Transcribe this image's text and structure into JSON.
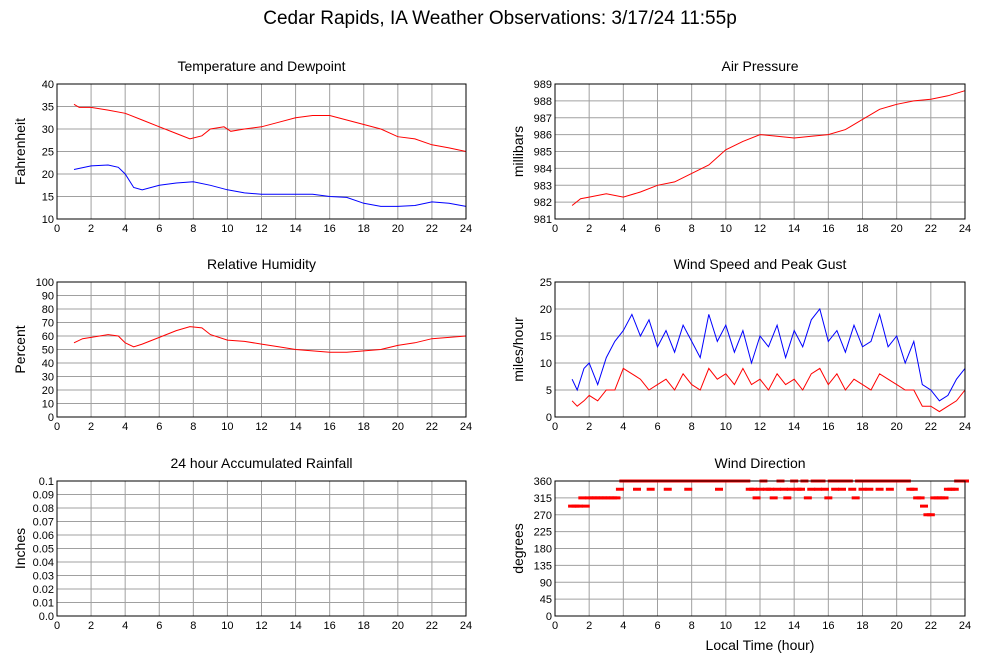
{
  "page_title": "Cedar Rapids, IA Weather Observations: 3/17/24 11:55p",
  "colors": {
    "red": "#ff0000",
    "blue": "#0000ff",
    "grid": "#a0a0a0"
  },
  "chart_data": [
    {
      "id": "temp",
      "type": "line",
      "title": "Temperature and Dewpoint",
      "ylabel": "Fahrenheit",
      "xlabel": "",
      "xlim": [
        0,
        24
      ],
      "ylim": [
        10,
        40
      ],
      "xticks": [
        2,
        4,
        6,
        8,
        10,
        12,
        14,
        16,
        18,
        20,
        22,
        24
      ],
      "yticks": [
        10,
        15,
        20,
        25,
        30,
        35,
        40
      ],
      "grid": true,
      "series": [
        {
          "color": "#ff0000",
          "x": [
            1,
            1.3,
            2,
            3,
            4,
            5,
            6,
            7,
            7.8,
            8.5,
            9,
            9.8,
            10.2,
            11,
            12,
            13,
            14,
            15,
            16,
            17,
            18,
            19,
            20,
            21,
            22,
            23,
            24
          ],
          "values": [
            35.5,
            34.8,
            34.8,
            34.2,
            33.5,
            32.0,
            30.5,
            29.0,
            27.8,
            28.5,
            30.0,
            30.5,
            29.5,
            30.0,
            30.5,
            31.5,
            32.5,
            33.0,
            33.0,
            32.0,
            31.0,
            30.0,
            28.3,
            27.8,
            26.5,
            25.8,
            25.0
          ]
        },
        {
          "color": "#0000ff",
          "x": [
            1,
            2,
            3,
            3.6,
            4,
            4.5,
            5,
            6,
            7,
            8,
            9,
            10,
            11,
            12,
            13,
            14,
            15,
            16,
            17,
            18,
            19,
            20,
            21,
            22,
            23,
            24
          ],
          "values": [
            21.0,
            21.8,
            22.0,
            21.5,
            20.0,
            17.0,
            16.5,
            17.5,
            18.0,
            18.3,
            17.5,
            16.5,
            15.8,
            15.5,
            15.5,
            15.5,
            15.5,
            15.0,
            14.8,
            13.5,
            12.8,
            12.8,
            13.0,
            13.8,
            13.5,
            12.8
          ]
        }
      ]
    },
    {
      "id": "pressure",
      "type": "line",
      "title": "Air Pressure",
      "ylabel": "millibars",
      "xlabel": "",
      "xlim": [
        0,
        24
      ],
      "ylim": [
        981,
        989
      ],
      "xticks": [
        2,
        4,
        6,
        8,
        10,
        12,
        14,
        16,
        18,
        20,
        22,
        24
      ],
      "yticks": [
        981,
        982,
        983,
        984,
        985,
        986,
        987,
        988,
        989
      ],
      "grid": true,
      "series": [
        {
          "color": "#ff0000",
          "x": [
            1,
            1.5,
            2,
            3,
            4,
            5,
            6,
            7,
            8,
            9,
            10,
            11,
            12,
            13,
            14,
            15,
            16,
            17,
            18,
            19,
            20,
            21,
            22,
            23,
            24
          ],
          "values": [
            981.8,
            982.2,
            982.3,
            982.5,
            982.3,
            982.6,
            983.0,
            983.2,
            983.7,
            984.2,
            985.1,
            985.6,
            986.0,
            985.9,
            985.8,
            985.9,
            986.0,
            986.3,
            986.9,
            987.5,
            987.8,
            988.0,
            988.1,
            988.3,
            988.6
          ]
        }
      ]
    },
    {
      "id": "humidity",
      "type": "line",
      "title": "Relative Humidity",
      "ylabel": "Percent",
      "xlabel": "",
      "xlim": [
        0,
        24
      ],
      "ylim": [
        0,
        100
      ],
      "xticks": [
        2,
        4,
        6,
        8,
        10,
        12,
        14,
        16,
        18,
        20,
        22,
        24
      ],
      "yticks": [
        0,
        10,
        20,
        30,
        40,
        50,
        60,
        70,
        80,
        90,
        100
      ],
      "grid": true,
      "series": [
        {
          "color": "#ff0000",
          "x": [
            1,
            1.5,
            2,
            3,
            3.6,
            4,
            4.5,
            5,
            6,
            7,
            7.8,
            8.5,
            9,
            10,
            11,
            12,
            13,
            14,
            15,
            16,
            17,
            18,
            19,
            20,
            21,
            22,
            23,
            24
          ],
          "values": [
            55,
            58,
            59,
            61,
            60,
            55,
            52,
            54,
            59,
            64,
            67,
            66,
            61,
            57,
            56,
            54,
            52,
            50,
            49,
            48,
            48,
            49,
            50,
            53,
            55,
            58,
            59,
            60
          ]
        }
      ]
    },
    {
      "id": "wind",
      "type": "line",
      "title": "Wind Speed and Peak Gust",
      "ylabel": "miles/hour",
      "xlabel": "",
      "xlim": [
        0,
        24
      ],
      "ylim": [
        0,
        25
      ],
      "xticks": [
        2,
        4,
        6,
        8,
        10,
        12,
        14,
        16,
        18,
        20,
        22,
        24
      ],
      "yticks": [
        0,
        5,
        10,
        15,
        20,
        25
      ],
      "grid": true,
      "series": [
        {
          "color": "#0000ff",
          "x": [
            1,
            1.3,
            1.7,
            2,
            2.5,
            3,
            3.5,
            4,
            4.5,
            5,
            5.5,
            6,
            6.5,
            7,
            7.5,
            8,
            8.5,
            9,
            9.5,
            10,
            10.5,
            11,
            11.5,
            12,
            12.5,
            13,
            13.5,
            14,
            14.5,
            15,
            15.5,
            16,
            16.5,
            17,
            17.5,
            18,
            18.5,
            19,
            19.5,
            20,
            20.5,
            21,
            21.5,
            22,
            22.5,
            23,
            23.5,
            24
          ],
          "values": [
            7,
            5,
            9,
            10,
            6,
            11,
            14,
            16,
            19,
            15,
            18,
            13,
            16,
            12,
            17,
            14,
            11,
            19,
            14,
            17,
            12,
            16,
            10,
            15,
            13,
            17,
            11,
            16,
            13,
            18,
            20,
            14,
            16,
            12,
            17,
            13,
            14,
            19,
            13,
            15,
            10,
            14,
            6,
            5,
            3,
            4,
            7,
            9
          ]
        },
        {
          "color": "#ff0000",
          "x": [
            1,
            1.3,
            1.7,
            2,
            2.5,
            3,
            3.5,
            4,
            4.5,
            5,
            5.5,
            6,
            6.5,
            7,
            7.5,
            8,
            8.5,
            9,
            9.5,
            10,
            10.5,
            11,
            11.5,
            12,
            12.5,
            13,
            13.5,
            14,
            14.5,
            15,
            15.5,
            16,
            16.5,
            17,
            17.5,
            18,
            18.5,
            19,
            19.5,
            20,
            20.5,
            21,
            21.5,
            22,
            22.5,
            23,
            23.5,
            24
          ],
          "values": [
            3,
            2,
            3,
            4,
            3,
            5,
            5,
            9,
            8,
            7,
            5,
            6,
            7,
            5,
            8,
            6,
            5,
            9,
            7,
            8,
            6,
            9,
            6,
            7,
            5,
            8,
            6,
            7,
            5,
            8,
            9,
            6,
            8,
            5,
            7,
            6,
            5,
            8,
            7,
            6,
            5,
            5,
            2,
            2,
            1,
            2,
            3,
            5
          ]
        }
      ]
    },
    {
      "id": "rain",
      "type": "line",
      "title": "24 hour Accumulated Rainfall",
      "ylabel": "Inches",
      "xlabel": "",
      "xlim": [
        0,
        24
      ],
      "ylim": [
        0,
        0.1
      ],
      "xticks": [
        2,
        4,
        6,
        8,
        10,
        12,
        14,
        16,
        18,
        20,
        22,
        24
      ],
      "yticks": [
        "0.0",
        "0.01",
        "0.02",
        "0.03",
        "0.04",
        "0.05",
        "0.06",
        "0.07",
        "0.08",
        "0.09",
        "0.1"
      ],
      "grid": true,
      "series": [
        {
          "color": "#ff0000",
          "x": [
            1,
            24
          ],
          "values": [
            0,
            0
          ]
        }
      ]
    },
    {
      "id": "winddir",
      "type": "scatter",
      "title": "Wind Direction",
      "ylabel": "degrees",
      "xlabel": "Local Time (hour)",
      "xlim": [
        0,
        24
      ],
      "ylim": [
        0,
        360
      ],
      "xticks": [
        2,
        4,
        6,
        8,
        10,
        12,
        14,
        16,
        18,
        20,
        22,
        24
      ],
      "yticks": [
        0,
        45,
        90,
        135,
        180,
        225,
        270,
        315,
        360
      ],
      "grid": true,
      "series": [
        {
          "color": "#ff0000",
          "x": [
            1.0,
            1.2,
            1.4,
            1.6,
            1.8,
            2.0,
            2.2,
            2.4,
            2.6,
            2.8,
            3.0,
            3.2,
            3.4,
            3.6,
            3.8,
            4.0,
            4.2,
            4.4,
            4.6,
            4.8,
            5.0,
            5.2,
            5.4,
            5.6,
            5.8,
            6.0,
            6.2,
            6.4,
            6.6,
            6.8,
            7.0,
            7.2,
            7.4,
            7.6,
            7.8,
            8.0,
            8.2,
            8.4,
            8.6,
            8.8,
            9.0,
            9.2,
            9.4,
            9.6,
            9.8,
            10.0,
            10.2,
            10.4,
            10.6,
            10.8,
            11.0,
            11.2,
            11.4,
            11.6,
            11.8,
            12.0,
            12.2,
            12.4,
            12.6,
            12.8,
            13.0,
            13.2,
            13.4,
            13.6,
            13.8,
            14.0,
            14.2,
            14.4,
            14.6,
            14.8,
            15.0,
            15.2,
            15.4,
            15.6,
            15.8,
            16.0,
            16.2,
            16.4,
            16.6,
            16.8,
            17.0,
            17.2,
            17.4,
            17.6,
            17.8,
            18.0,
            18.2,
            18.4,
            18.6,
            18.8,
            19.0,
            19.2,
            19.4,
            19.6,
            19.8,
            20.0,
            20.2,
            20.4,
            20.6,
            20.8,
            21.0,
            21.2,
            21.4,
            21.6,
            21.8,
            22.0,
            22.2,
            22.4,
            22.6,
            22.8,
            23.0,
            23.2,
            23.4,
            23.6,
            23.8,
            24.0
          ],
          "values": [
            293,
            293,
            293,
            315,
            293,
            315,
            315,
            315,
            315,
            315,
            315,
            315,
            315,
            315,
            338,
            360,
            360,
            360,
            360,
            338,
            360,
            360,
            360,
            338,
            360,
            360,
            360,
            360,
            338,
            360,
            360,
            360,
            360,
            360,
            338,
            360,
            360,
            360,
            360,
            360,
            360,
            360,
            360,
            338,
            360,
            360,
            360,
            360,
            360,
            360,
            360,
            360,
            338,
            338,
            315,
            338,
            360,
            338,
            338,
            315,
            338,
            360,
            338,
            315,
            338,
            360,
            338,
            338,
            360,
            315,
            338,
            360,
            338,
            360,
            338,
            315,
            360,
            338,
            360,
            338,
            360,
            360,
            338,
            315,
            360,
            338,
            360,
            338,
            360,
            360,
            338,
            360,
            360,
            338,
            360,
            360,
            360,
            360,
            360,
            338,
            338,
            315,
            315,
            293,
            270,
            270,
            315,
            315,
            315,
            315,
            338,
            338,
            338,
            360,
            360,
            360
          ]
        }
      ]
    }
  ]
}
